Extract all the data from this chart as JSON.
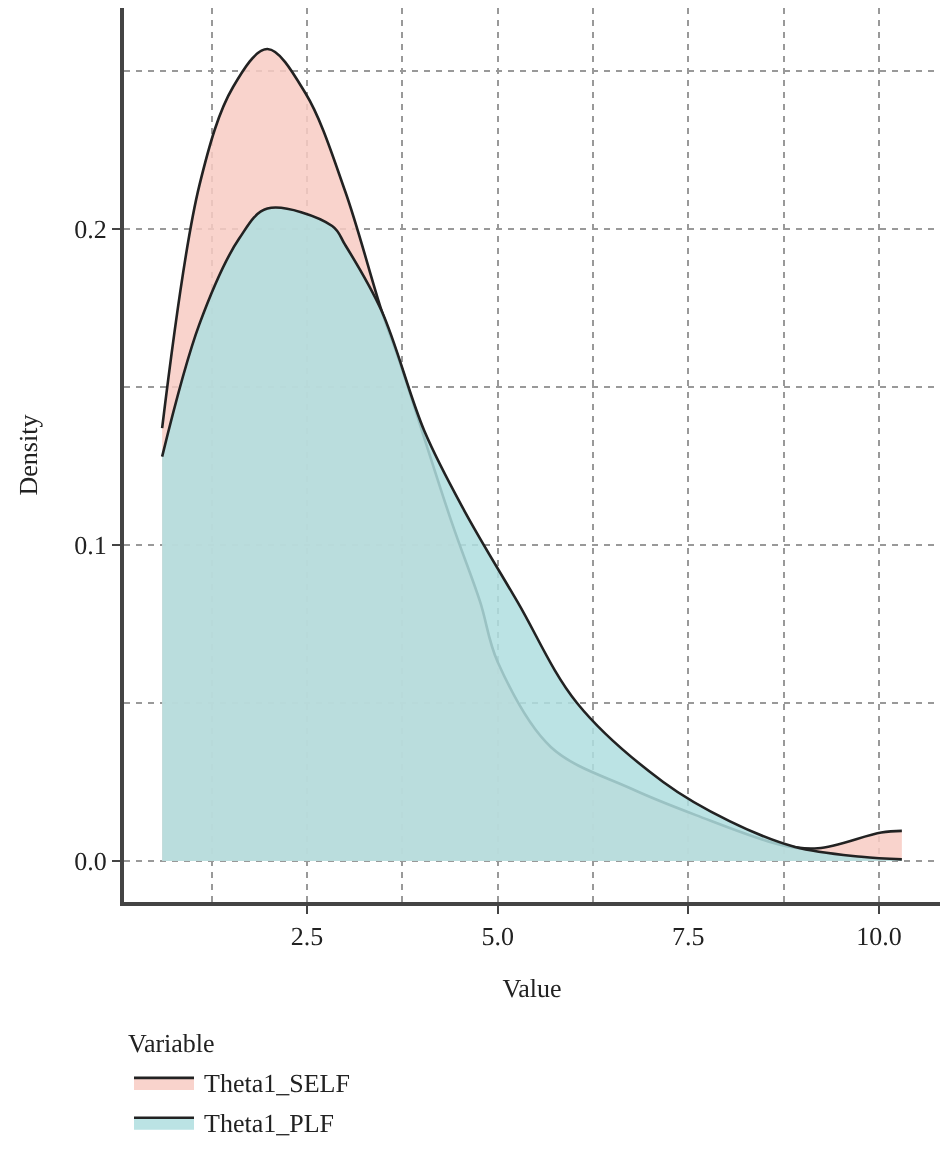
{
  "chart_data": {
    "type": "area",
    "xlabel": "Value",
    "ylabel": "Density",
    "legend_title": "Variable",
    "xlim": [
      0.1,
      10.8
    ],
    "ylim": [
      -0.013,
      0.27
    ],
    "xticks": [
      2.5,
      {
        "value": 5,
        "label": "5.0"
      },
      7.5,
      {
        "value": 10,
        "label": "10.0"
      }
    ],
    "yticks": [
      {
        "value": 0,
        "label": "0.0"
      },
      0.1,
      0.2
    ],
    "grid": true,
    "legend": "bottom left",
    "line_style": "solid",
    "series": [
      {
        "name": "Theta1_SELF",
        "color": "#f8cbc3",
        "x": [
          0.6,
          1.09,
          1.53,
          1.98,
          2.48,
          3.0,
          3.48,
          3.7,
          4.4,
          4.77,
          5.0,
          5.7,
          6.74,
          7.6,
          8.73,
          9.2,
          10.03,
          10.3
        ],
        "values": [
          0.137,
          0.214,
          0.245,
          0.257,
          0.243,
          0.212,
          0.174,
          0.159,
          0.107,
          0.082,
          0.063,
          0.036,
          0.023,
          0.0145,
          0.005,
          0.004,
          0.009,
          0.0095
        ]
      },
      {
        "name": "Theta1_PLF",
        "color": "#afdedf",
        "x": [
          0.6,
          1.09,
          1.61,
          1.98,
          2.83,
          3.0,
          3.48,
          4.04,
          4.56,
          5.26,
          6.04,
          7.17,
          8.04,
          8.9,
          9.77,
          10.3
        ],
        "values": [
          0.128,
          0.17,
          0.197,
          0.2065,
          0.201,
          0.195,
          0.174,
          0.136,
          0.111,
          0.082,
          0.05,
          0.025,
          0.0126,
          0.0044,
          0.0013,
          0.0005
        ]
      }
    ]
  }
}
